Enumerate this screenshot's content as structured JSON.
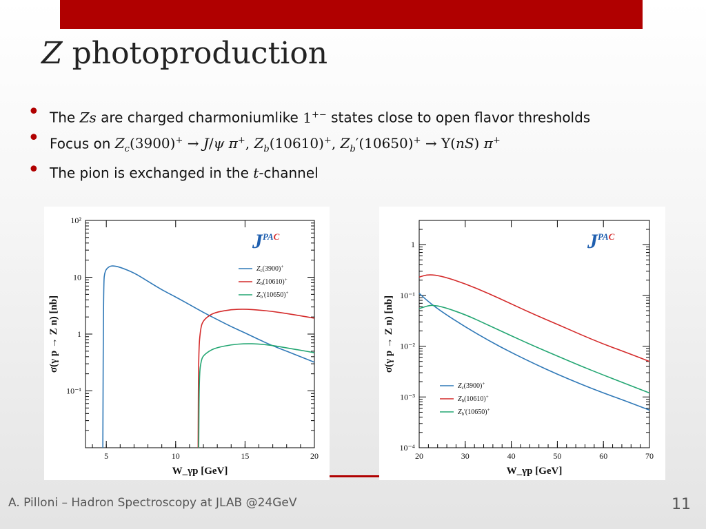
{
  "title_var": "Z",
  "title_rest": " photoproduction",
  "bullets": {
    "b1_pre": "The ",
    "b1_zs": "Zs",
    "b1_mid": " are charged charmoniumlike ",
    "b1_state": "1",
    "b1_state_sup": "+−",
    "b1_post": " states close to open flavor thresholds",
    "b2_pre": "Focus on ",
    "b2_math": "Z_c(3900)^+ → J/ψ π^+, Z_b(10610)^+, Z_b'(10650)^+ → Υ(nS) π^+",
    "b3_pre": "The pion is exchanged in the ",
    "b3_t": "t",
    "b3_post": "-channel"
  },
  "footer": "A. Pilloni – Hadron Spectroscopy at JLAB @24GeV",
  "page_number": "11",
  "colors": {
    "accent": "#b00000",
    "zc": "#2f78b7",
    "zb": "#d42a2a",
    "zbp": "#23a672",
    "logo": "#1f5faf"
  },
  "chart_data": [
    {
      "type": "line",
      "x_label": "W_γp  [GeV]",
      "y_label": "σ(γ p → Z n) [nb]",
      "xlim": [
        3.5,
        20
      ],
      "ylim": [
        0.01,
        100
      ],
      "y_scale": "log",
      "x_ticks": [
        5,
        10,
        15,
        20
      ],
      "y_ticks": [
        "10²",
        "10",
        "1",
        "10⁻¹"
      ],
      "legend_position": "right",
      "logo": "JPAC",
      "series": [
        {
          "name": "Z_c(3900)^+",
          "color": "#2f78b7",
          "x": [
            4.75,
            4.8,
            4.9,
            5.2,
            5.5,
            6,
            7,
            8,
            9,
            10,
            11,
            12,
            13,
            14,
            15,
            16,
            17,
            18,
            19,
            20
          ],
          "y": [
            0.01,
            8,
            13,
            15.5,
            16,
            15,
            12,
            8.5,
            6,
            4.5,
            3.3,
            2.4,
            1.8,
            1.35,
            1.05,
            0.8,
            0.62,
            0.5,
            0.4,
            0.32
          ]
        },
        {
          "name": "Z_b(10610)^+",
          "color": "#d42a2a",
          "x": [
            11.62,
            11.65,
            11.8,
            12,
            12.5,
            13,
            14,
            15,
            16,
            17,
            18,
            19,
            20
          ],
          "y": [
            0.01,
            0.5,
            1.3,
            1.75,
            2.2,
            2.45,
            2.7,
            2.75,
            2.65,
            2.5,
            2.3,
            2.1,
            1.9
          ]
        },
        {
          "name": "Z_b'(10650)^+",
          "color": "#23a672",
          "x": [
            11.66,
            11.7,
            11.85,
            12,
            12.5,
            13,
            14,
            15,
            16,
            17,
            18,
            19,
            20
          ],
          "y": [
            0.01,
            0.2,
            0.35,
            0.42,
            0.52,
            0.58,
            0.65,
            0.68,
            0.67,
            0.63,
            0.57,
            0.52,
            0.47
          ]
        }
      ]
    },
    {
      "type": "line",
      "x_label": "W_γp  [GeV]",
      "y_label": "σ(γ p → Z n) [nb]",
      "xlim": [
        20,
        70
      ],
      "ylim": [
        0.0001,
        3
      ],
      "y_scale": "log",
      "x_ticks": [
        20,
        30,
        40,
        50,
        60,
        70
      ],
      "y_ticks": [
        "1",
        "10⁻¹",
        "10⁻²",
        "10⁻³",
        "10⁻⁴"
      ],
      "legend_position": "bottom-left",
      "logo": "JPAC",
      "series": [
        {
          "name": "Z_c(3900)^+",
          "color": "#2f78b7",
          "x": [
            20,
            22,
            25,
            30,
            35,
            40,
            45,
            50,
            55,
            60,
            65,
            70
          ],
          "y": [
            0.11,
            0.075,
            0.047,
            0.024,
            0.013,
            0.0075,
            0.0045,
            0.0028,
            0.0018,
            0.0012,
            0.00082,
            0.00055
          ]
        },
        {
          "name": "Z_b(10610)^+",
          "color": "#d42a2a",
          "x": [
            20,
            22,
            25,
            30,
            35,
            40,
            45,
            50,
            55,
            60,
            65,
            70
          ],
          "y": [
            0.23,
            0.26,
            0.24,
            0.17,
            0.11,
            0.068,
            0.042,
            0.027,
            0.017,
            0.011,
            0.0075,
            0.005
          ]
        },
        {
          "name": "Z_b'(10650)^+",
          "color": "#23a672",
          "x": [
            20,
            22,
            23,
            25,
            30,
            35,
            40,
            45,
            50,
            55,
            60,
            65,
            70
          ],
          "y": [
            0.055,
            0.063,
            0.064,
            0.06,
            0.042,
            0.026,
            0.016,
            0.01,
            0.0064,
            0.0041,
            0.0027,
            0.0018,
            0.0012
          ]
        }
      ]
    }
  ]
}
